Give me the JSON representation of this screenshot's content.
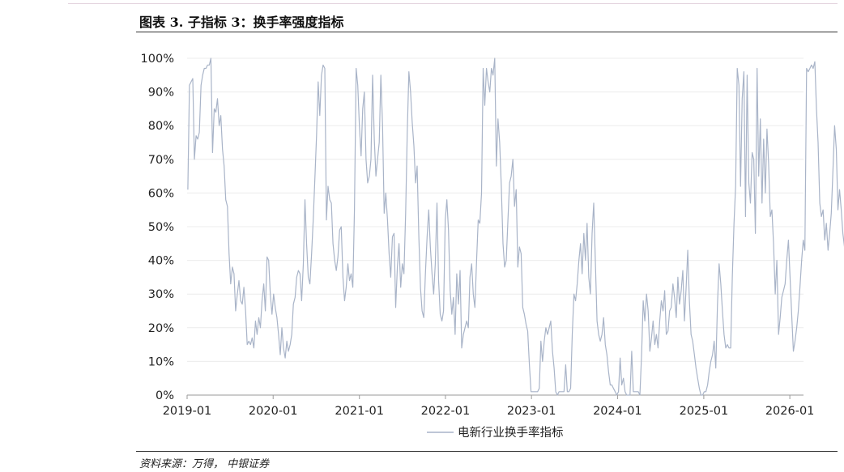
{
  "figure": {
    "title": "图表 3. 子指标 3：换手率强度指标",
    "source": "资料来源：万得， 中银证券"
  },
  "chart_data": {
    "type": "line",
    "title": "",
    "xlabel": "",
    "ylabel": "",
    "x_range": [
      "2019-01-01",
      "2026-02-28"
    ],
    "ylim": [
      0,
      100
    ],
    "y_ticks": [
      0,
      10,
      20,
      30,
      40,
      50,
      60,
      70,
      80,
      90,
      100
    ],
    "y_tick_labels": [
      "0%",
      "10%",
      "20%",
      "30%",
      "40%",
      "50%",
      "60%",
      "70%",
      "80%",
      "90%",
      "100%"
    ],
    "x_ticks": [
      "2019-01-01",
      "2020-01-01",
      "2021-01-01",
      "2022-01-01",
      "2023-01-01",
      "2024-01-01",
      "2025-01-01",
      "2026-01-01"
    ],
    "x_tick_labels": [
      "2019-01",
      "2020-01",
      "2021-01",
      "2022-01",
      "2023-01",
      "2024-01",
      "2025-01",
      "2026-01"
    ],
    "grid": true,
    "legend_position": "bottom",
    "line_color": "#a9b4c8",
    "grid_color": "#ececec",
    "series": [
      {
        "name": "电新行业换手率指标",
        "x_start": "2019-01-04",
        "x_step_days": 7,
        "values": [
          61,
          92,
          93,
          94,
          70,
          77,
          76,
          78,
          92,
          95,
          97,
          97,
          98,
          98,
          100,
          72,
          85,
          84,
          88,
          80,
          83,
          73,
          68,
          58,
          56,
          42,
          33,
          38,
          36,
          25,
          30,
          34,
          28,
          27,
          32,
          25,
          15,
          16,
          15,
          17,
          14,
          22,
          18,
          23,
          20,
          28,
          33,
          25,
          41,
          40,
          30,
          24,
          30,
          26,
          23,
          18,
          12,
          20,
          14,
          11,
          16,
          13,
          15,
          18,
          27,
          29,
          35,
          37,
          36,
          28,
          39,
          58,
          45,
          35,
          33,
          42,
          52,
          64,
          77,
          93,
          83,
          95,
          98,
          97,
          52,
          62,
          58,
          57,
          45,
          40,
          37,
          41,
          49,
          50,
          35,
          28,
          32,
          39,
          34,
          36,
          32,
          55,
          97,
          92,
          80,
          71,
          85,
          90,
          70,
          63,
          65,
          70,
          95,
          76,
          65,
          70,
          75,
          95,
          80,
          54,
          60,
          52,
          42,
          35,
          47,
          48,
          26,
          38,
          45,
          32,
          39,
          36,
          54,
          78,
          96,
          90,
          81,
          74,
          63,
          68,
          47,
          32,
          25,
          23,
          36,
          47,
          55,
          44,
          36,
          30,
          39,
          57,
          34,
          24,
          22,
          25,
          52,
          58,
          49,
          31,
          24,
          29,
          18,
          36,
          27,
          37,
          14,
          18,
          20,
          22,
          20,
          35,
          39,
          30,
          26,
          40,
          52,
          51,
          60,
          97,
          86,
          97,
          93,
          90,
          97,
          95,
          100,
          68,
          82,
          75,
          62,
          45,
          38,
          40,
          52,
          63,
          65,
          70,
          56,
          61,
          38,
          44,
          42,
          26,
          24,
          21,
          19,
          9,
          1,
          1,
          1,
          1,
          1,
          2,
          16,
          10,
          16,
          20,
          18,
          20,
          22,
          13,
          8,
          1,
          0,
          1,
          1,
          1,
          1,
          9,
          1,
          1,
          2,
          18,
          30,
          28,
          33,
          40,
          45,
          36,
          48,
          40,
          51,
          35,
          30,
          48,
          57,
          40,
          22,
          18,
          16,
          18,
          23,
          15,
          12,
          7,
          3,
          3,
          2,
          1,
          0,
          1,
          11,
          3,
          5,
          1,
          0,
          0,
          0,
          13,
          1,
          1,
          1,
          1,
          0,
          12,
          28,
          22,
          30,
          25,
          13,
          17,
          22,
          15,
          18,
          14,
          22,
          28,
          25,
          31,
          18,
          19,
          25,
          26,
          33,
          29,
          23,
          35,
          27,
          31,
          37,
          22,
          32,
          43,
          28,
          18,
          16,
          12,
          8,
          5,
          2,
          0,
          0,
          1,
          1,
          3,
          7,
          10,
          12,
          16,
          8,
          27,
          39,
          33,
          25,
          18,
          14,
          15,
          14,
          14,
          35,
          51,
          62,
          97,
          92,
          62,
          88,
          96,
          53,
          95,
          63,
          57,
          72,
          70,
          48,
          97,
          65,
          82,
          57,
          76,
          60,
          79,
          69,
          53,
          55,
          45,
          30,
          40,
          18,
          23,
          29,
          31,
          33,
          40,
          46,
          35,
          24,
          13,
          16,
          20,
          25,
          32,
          40,
          46,
          43,
          97,
          96,
          97,
          98,
          97,
          99,
          85,
          75,
          57,
          53,
          55,
          46,
          51,
          43,
          48,
          54,
          67,
          80,
          73,
          55,
          61,
          55,
          48,
          44,
          39,
          37,
          45,
          49,
          38,
          33,
          17,
          24,
          36,
          47,
          38,
          45,
          38,
          34,
          31,
          36,
          42,
          55,
          62,
          65,
          77,
          63,
          68,
          60,
          70,
          66,
          49,
          65,
          76,
          75,
          97,
          98,
          97,
          97,
          98,
          35,
          20,
          16,
          44,
          55,
          36,
          60,
          72,
          90,
          75,
          86,
          100,
          97,
          85,
          73,
          78,
          59,
          58,
          57,
          56,
          83,
          92,
          86
        ]
      }
    ]
  }
}
